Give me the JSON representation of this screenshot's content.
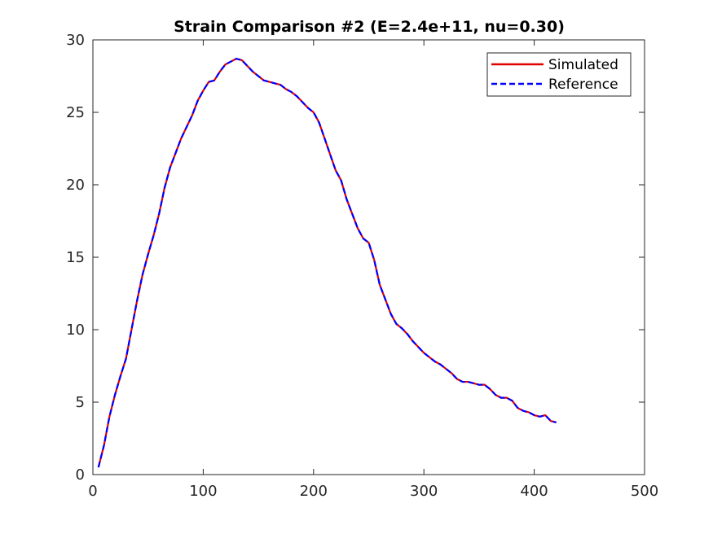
{
  "chart_data": {
    "type": "line",
    "title": "Strain Comparison #2 (E=2.4e+11, nu=0.30)",
    "xlabel": "",
    "ylabel": "",
    "xlim": [
      0,
      500
    ],
    "ylim": [
      0,
      30
    ],
    "xticks": [
      0,
      100,
      200,
      300,
      400,
      500
    ],
    "yticks": [
      0,
      5,
      10,
      15,
      20,
      25,
      30
    ],
    "xtick_labels": [
      "0",
      "100",
      "200",
      "300",
      "400",
      "500"
    ],
    "ytick_labels": [
      "0",
      "5",
      "10",
      "15",
      "20",
      "25",
      "30"
    ],
    "grid": false,
    "legend_position": "top-right",
    "colors": {
      "simulated": "#e00000",
      "reference": "#0000ff"
    },
    "series": [
      {
        "name": "Simulated",
        "style": "solid",
        "x": [
          5,
          10,
          15,
          20,
          25,
          30,
          35,
          40,
          45,
          50,
          55,
          60,
          65,
          70,
          75,
          80,
          85,
          90,
          95,
          100,
          105,
          110,
          115,
          120,
          125,
          130,
          135,
          140,
          145,
          150,
          155,
          160,
          165,
          170,
          175,
          180,
          185,
          190,
          195,
          200,
          205,
          210,
          215,
          220,
          225,
          230,
          235,
          240,
          245,
          250,
          255,
          260,
          265,
          270,
          275,
          280,
          285,
          290,
          295,
          300,
          305,
          310,
          315,
          320,
          325,
          330,
          335,
          340,
          345,
          350,
          355,
          360,
          365,
          370,
          375,
          380,
          385,
          390,
          395,
          400,
          405,
          410,
          415,
          420
        ],
        "y": [
          0.5,
          2.0,
          4.0,
          5.5,
          6.8,
          8.0,
          10.0,
          12.0,
          13.8,
          15.2,
          16.5,
          18.0,
          19.8,
          21.2,
          22.2,
          23.2,
          24.0,
          24.8,
          25.8,
          26.5,
          27.1,
          27.2,
          27.8,
          28.3,
          28.5,
          28.7,
          28.6,
          28.2,
          27.8,
          27.5,
          27.2,
          27.1,
          27.0,
          26.9,
          26.6,
          26.4,
          26.1,
          25.7,
          25.3,
          25.0,
          24.3,
          23.2,
          22.1,
          21.0,
          20.3,
          19.0,
          18.0,
          17.0,
          16.3,
          16.0,
          14.8,
          13.1,
          12.1,
          11.1,
          10.4,
          10.1,
          9.7,
          9.2,
          8.8,
          8.4,
          8.1,
          7.8,
          7.6,
          7.3,
          7.0,
          6.6,
          6.4,
          6.4,
          6.3,
          6.2,
          6.2,
          5.9,
          5.5,
          5.3,
          5.3,
          5.1,
          4.6,
          4.4,
          4.3,
          4.1,
          4.0,
          4.1,
          3.7,
          3.6
        ]
      },
      {
        "name": "Reference",
        "style": "dashed",
        "x": [
          5,
          10,
          15,
          20,
          25,
          30,
          35,
          40,
          45,
          50,
          55,
          60,
          65,
          70,
          75,
          80,
          85,
          90,
          95,
          100,
          105,
          110,
          115,
          120,
          125,
          130,
          135,
          140,
          145,
          150,
          155,
          160,
          165,
          170,
          175,
          180,
          185,
          190,
          195,
          200,
          205,
          210,
          215,
          220,
          225,
          230,
          235,
          240,
          245,
          250,
          255,
          260,
          265,
          270,
          275,
          280,
          285,
          290,
          295,
          300,
          305,
          310,
          315,
          320,
          325,
          330,
          335,
          340,
          345,
          350,
          355,
          360,
          365,
          370,
          375,
          380,
          385,
          390,
          395,
          400,
          405,
          410,
          415,
          420
        ],
        "y": [
          0.5,
          2.0,
          4.0,
          5.5,
          6.8,
          8.0,
          10.0,
          12.0,
          13.8,
          15.2,
          16.5,
          18.0,
          19.8,
          21.2,
          22.2,
          23.2,
          24.0,
          24.8,
          25.8,
          26.5,
          27.1,
          27.2,
          27.8,
          28.3,
          28.5,
          28.7,
          28.6,
          28.2,
          27.8,
          27.5,
          27.2,
          27.1,
          27.0,
          26.9,
          26.6,
          26.4,
          26.1,
          25.7,
          25.3,
          25.0,
          24.3,
          23.2,
          22.1,
          21.0,
          20.3,
          19.0,
          18.0,
          17.0,
          16.3,
          16.0,
          14.8,
          13.1,
          12.1,
          11.1,
          10.4,
          10.1,
          9.7,
          9.2,
          8.8,
          8.4,
          8.1,
          7.8,
          7.6,
          7.3,
          7.0,
          6.6,
          6.4,
          6.4,
          6.3,
          6.2,
          6.2,
          5.9,
          5.5,
          5.3,
          5.3,
          5.1,
          4.6,
          4.4,
          4.3,
          4.1,
          4.0,
          4.1,
          3.7,
          3.6
        ]
      }
    ]
  }
}
